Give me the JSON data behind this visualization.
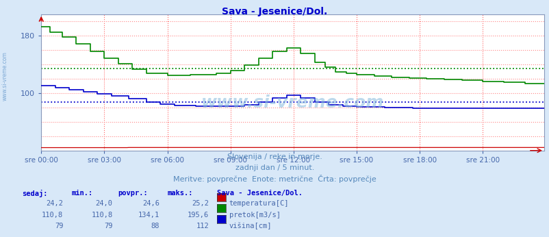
{
  "title": "Sava - Jesenice/Dol.",
  "title_color": "#0000cc",
  "bg_color": "#d8e8f8",
  "plot_bg_color": "#ffffff",
  "ylim_bottom": 20,
  "ylim_top": 210,
  "ytick_positions": [
    100,
    180
  ],
  "ytick_labels": [
    "100",
    "180"
  ],
  "xtick_positions": [
    0,
    36,
    72,
    108,
    144,
    180,
    216,
    252
  ],
  "xtick_labels": [
    "sre 00:00",
    "sre 03:00",
    "sre 06:00",
    "sre 09:00",
    "sre 12:00",
    "sre 15:00",
    "sre 18:00",
    "sre 21:00"
  ],
  "grid_color_v": "#ff6666",
  "grid_color_h": "#ff8888",
  "avg_pretok": 134.1,
  "avg_visina": 88.0,
  "color_pretok": "#008800",
  "color_visina": "#0000cc",
  "color_temp": "#cc0000",
  "subtitle1": "Slovenija / reke in morje.",
  "subtitle2": "zadnji dan / 5 minut.",
  "subtitle3": "Meritve: povprečne  Enote: metrične  Črta: povprečje",
  "label_sedaj": "sedaj:",
  "label_min": "min.:",
  "label_povpr": "povpr.:",
  "label_maks": "maks.:",
  "label_station": "Sava - Jesenice/Dol.",
  "row1_vals": [
    "24,2",
    "24,0",
    "24,6",
    "25,2"
  ],
  "row1_label": "temperatura[C]",
  "row1_color": "#cc0000",
  "row2_vals": [
    "110,8",
    "110,8",
    "134,1",
    "195,6"
  ],
  "row2_label": "pretok[m3/s]",
  "row2_color": "#008800",
  "row3_vals": [
    "79",
    "79",
    "88",
    "112"
  ],
  "row3_label": "višina[cm]",
  "row3_color": "#0000cc",
  "watermark": "www.si-vreme.com",
  "watermark_color": "#88bbdd",
  "side_watermark": "www.si-vreme.com",
  "side_watermark_color": "#6699cc"
}
